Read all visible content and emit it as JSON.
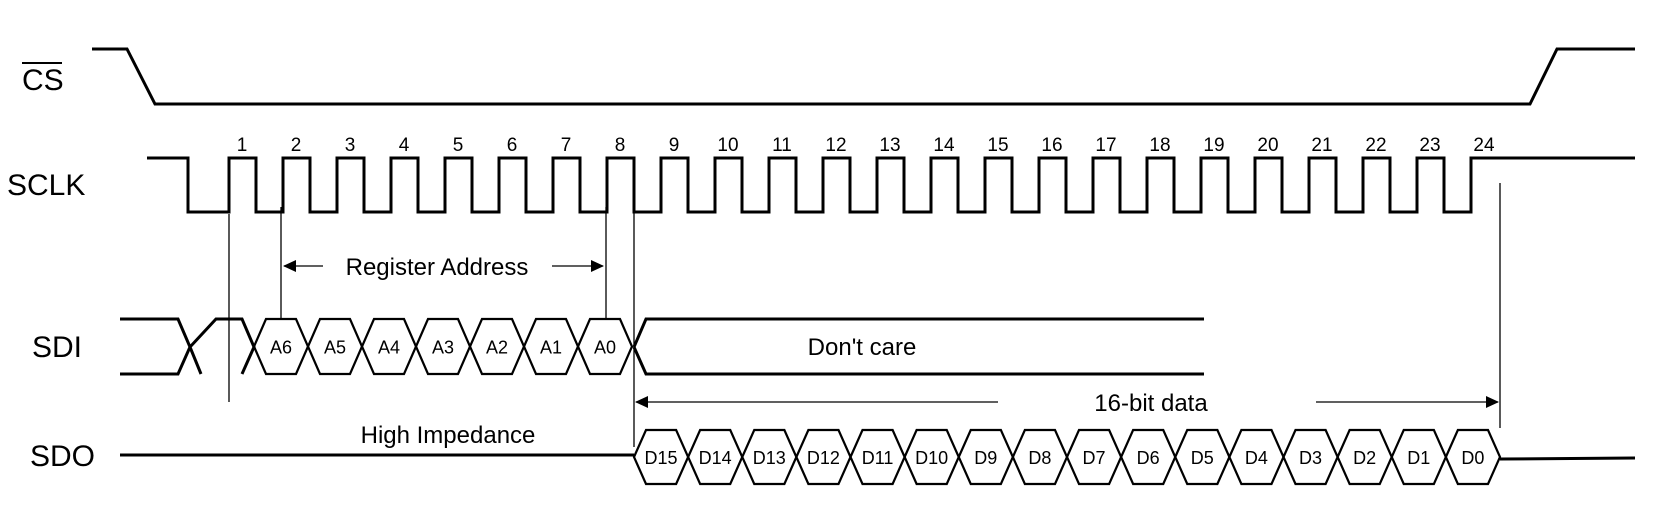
{
  "signals": {
    "cs": "CS",
    "sclk": "SCLK",
    "sdi": "SDI",
    "sdo": "SDO"
  },
  "clock_numbers": [
    "1",
    "2",
    "3",
    "4",
    "5",
    "6",
    "7",
    "8",
    "9",
    "10",
    "11",
    "12",
    "13",
    "14",
    "15",
    "16",
    "17",
    "18",
    "19",
    "20",
    "21",
    "22",
    "23",
    "24"
  ],
  "sdi_bits": [
    "A6",
    "A5",
    "A4",
    "A3",
    "A2",
    "A1",
    "A0"
  ],
  "sdo_bits": [
    "D15",
    "D14",
    "D13",
    "D12",
    "D11",
    "D10",
    "D9",
    "D8",
    "D7",
    "D6",
    "D5",
    "D4",
    "D3",
    "D2",
    "D1",
    "D0"
  ],
  "annotations": {
    "register_address": "Register Address",
    "dont_care": "Don't care",
    "sixteen_bit_data": "16-bit data",
    "high_impedance": "High Impedance"
  }
}
